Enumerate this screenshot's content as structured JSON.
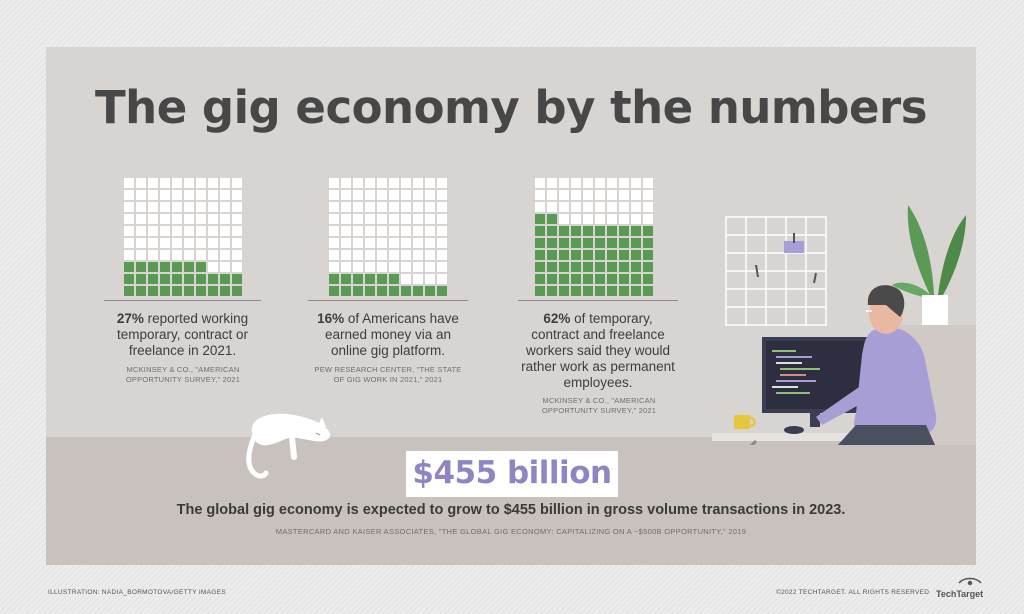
{
  "title": "The gig economy by the numbers",
  "stats": [
    {
      "highlight": "27%",
      "text": " reported working temporary, contract or freelance in 2021.",
      "source": "McKinsey & Co., \"American Opportunity Survey,\" 2021",
      "filled_percent": 27,
      "waffle_color": "#5a9a55"
    },
    {
      "highlight": "16%",
      "text": " of Americans have earned money via an online gig platform.",
      "source": "Pew Research Center, \"The State of Gig Work in 2021,\" 2021",
      "filled_percent": 16,
      "waffle_color": "#5a9a55"
    },
    {
      "highlight": "62%",
      "text": " of temporary, contract and freelance workers said they would rather work as permanent employees.",
      "source": "McKinsey & Co., \"American Opportunity Survey,\" 2021",
      "filled_percent": 62,
      "waffle_color": "#5a9a55"
    }
  ],
  "big_number": "$455 billion",
  "big_number_color": "#8e86c4",
  "bottom_text": "The global gig economy is expected to grow to $455 billion in gross volume transactions in 2023.",
  "bottom_source": "MASTERCARD AND KAISER ASSOCIATES, \"THE GLOBAL GIG ECONOMY: CAPITALIZING ON A ~$500B OPPORTUNITY,\" 2019",
  "illustration_credit": "ILLUSTRATION: NADIA_BORMOTOVA/GETTY IMAGES",
  "copyright": "©2022 TECHTARGET. ALL RIGHTS RESERVED",
  "logo_text": "TechTarget"
}
